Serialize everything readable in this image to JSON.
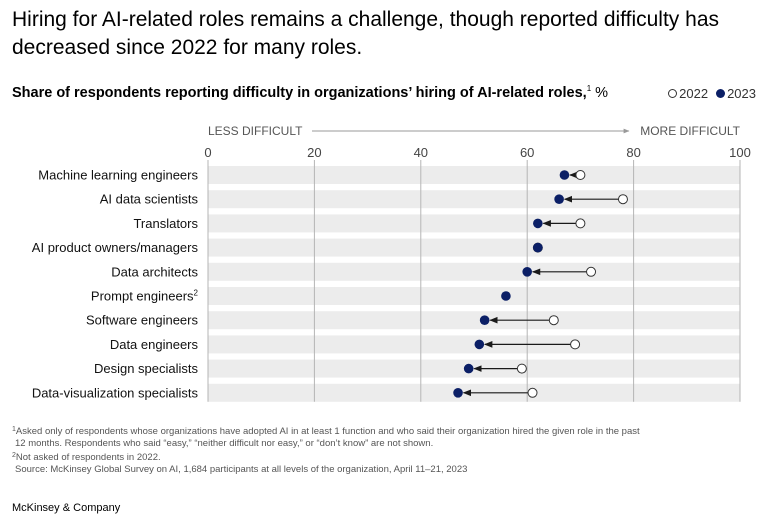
{
  "headline": "Hiring for AI-related roles remains a challenge, though reported difficulty has decreased since 2022 for many roles.",
  "subtitle": "Share of respondents reporting difficulty in organizations’ hiring of AI-related roles,",
  "subtitle_sup": "1",
  "subtitle_unit": " %",
  "legend": {
    "open_label": "2022",
    "filled_label": "2023"
  },
  "colors": {
    "filled": "#0b1f66",
    "open_stroke": "#333333",
    "band": "#ececec",
    "grid": "#b5b5b5",
    "arrow": "#1a1a1a"
  },
  "chart_data": {
    "type": "scatter",
    "subtype": "dumbbell",
    "title": "Share of respondents reporting difficulty in organizations’ hiring of AI-related roles,",
    "xlabel": "%",
    "axis_left_label": "LESS DIFFICULT",
    "axis_right_label": "MORE DIFFICULT",
    "xlim": [
      0,
      100
    ],
    "xticks": [
      "0",
      "20",
      "40",
      "60",
      "80",
      "100"
    ],
    "grid": true,
    "legend_position": "top-right",
    "categories": [
      "Machine learning engineers",
      "AI data scientists",
      "Translators",
      "AI product owners/managers",
      "Data architects",
      "Prompt engineers",
      "Software engineers",
      "Data engineers",
      "Design specialists",
      "Data-visualization specialists"
    ],
    "category_sups": [
      "",
      "",
      "",
      "",
      "",
      "2",
      "",
      "",
      "",
      ""
    ],
    "series": [
      {
        "name": "2022",
        "marker": "open",
        "values": [
          70,
          78,
          70,
          62,
          72,
          null,
          65,
          69,
          59,
          61
        ]
      },
      {
        "name": "2023",
        "marker": "filled",
        "values": [
          67,
          66,
          62,
          62,
          60,
          56,
          52,
          51,
          49,
          47
        ]
      }
    ]
  },
  "footnotes": {
    "f1_sup": "1",
    "f1_line1": "Asked only of respondents whose organizations have adopted AI in at least 1 function and who said their organization hired the given role in the past",
    "f1_line2": "12 months. Respondents who said “easy,” “neither difficult nor easy,” or “don’t know” are not shown.",
    "f2_sup": "2",
    "f2": "Not asked of respondents in 2022.",
    "source": "Source: McKinsey Global Survey on AI, 1,684 participants at all levels of the organization, April 11–21, 2023"
  },
  "brand": "McKinsey & Company"
}
